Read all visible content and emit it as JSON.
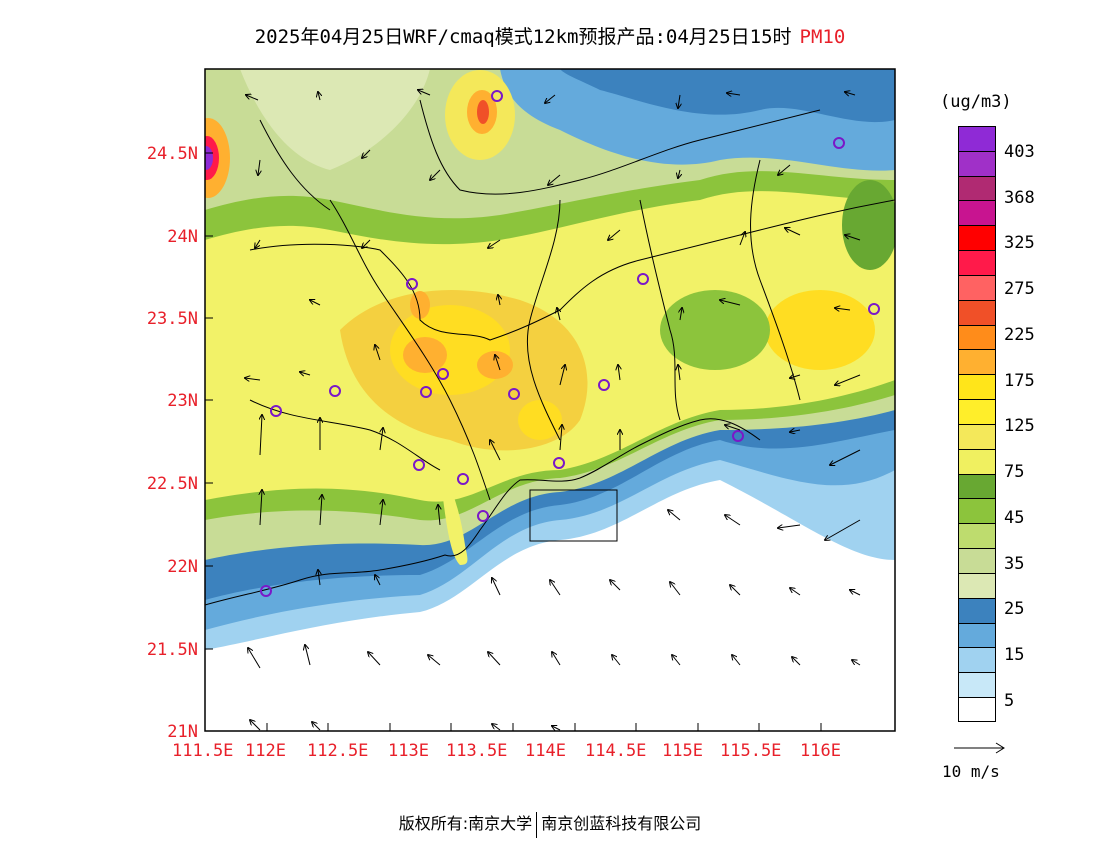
{
  "title": {
    "main": "2025年04月25日WRF/cmaq模式12km预报产品:04月25日15时",
    "species": "PM10"
  },
  "axes": {
    "lat_labels": [
      "24.5N",
      "24N",
      "23.5N",
      "23N",
      "22.5N",
      "22N",
      "21.5N",
      "21N"
    ],
    "lon_labels": [
      "111.5E",
      "112E",
      "112.5E",
      "113E",
      "113.5E",
      "114E",
      "114.5E",
      "115E",
      "115.5E",
      "116E"
    ]
  },
  "legend": {
    "unit": "(ug/m3)",
    "labels": [
      "403",
      "368",
      "325",
      "275",
      "225",
      "175",
      "125",
      "75",
      "45",
      "35",
      "25",
      "15",
      "5"
    ],
    "colors": [
      "#8f2ad6",
      "#a030c8",
      "#b02a72",
      "#c81490",
      "#ff0000",
      "#ff1a4a",
      "#ff6262",
      "#f05028",
      "#ff8c1a",
      "#ffb030",
      "#ffe51a",
      "#ffee2a",
      "#f4e85a",
      "#f0f060",
      "#68a832",
      "#8cc43c",
      "#bedc6e",
      "#c8dc96",
      "#dce8b4",
      "#3c82be",
      "#64aadc",
      "#a0d2f0",
      "#c8e8f8",
      "#ffffff"
    ]
  },
  "wind_reference": {
    "label": "10 m/s"
  },
  "footer": {
    "left": "版权所有:南京大学",
    "right": "南京创蓝科技有限公司"
  },
  "colors": {
    "axis_label": "#e8202a",
    "station_marker": "#7a18c8"
  }
}
